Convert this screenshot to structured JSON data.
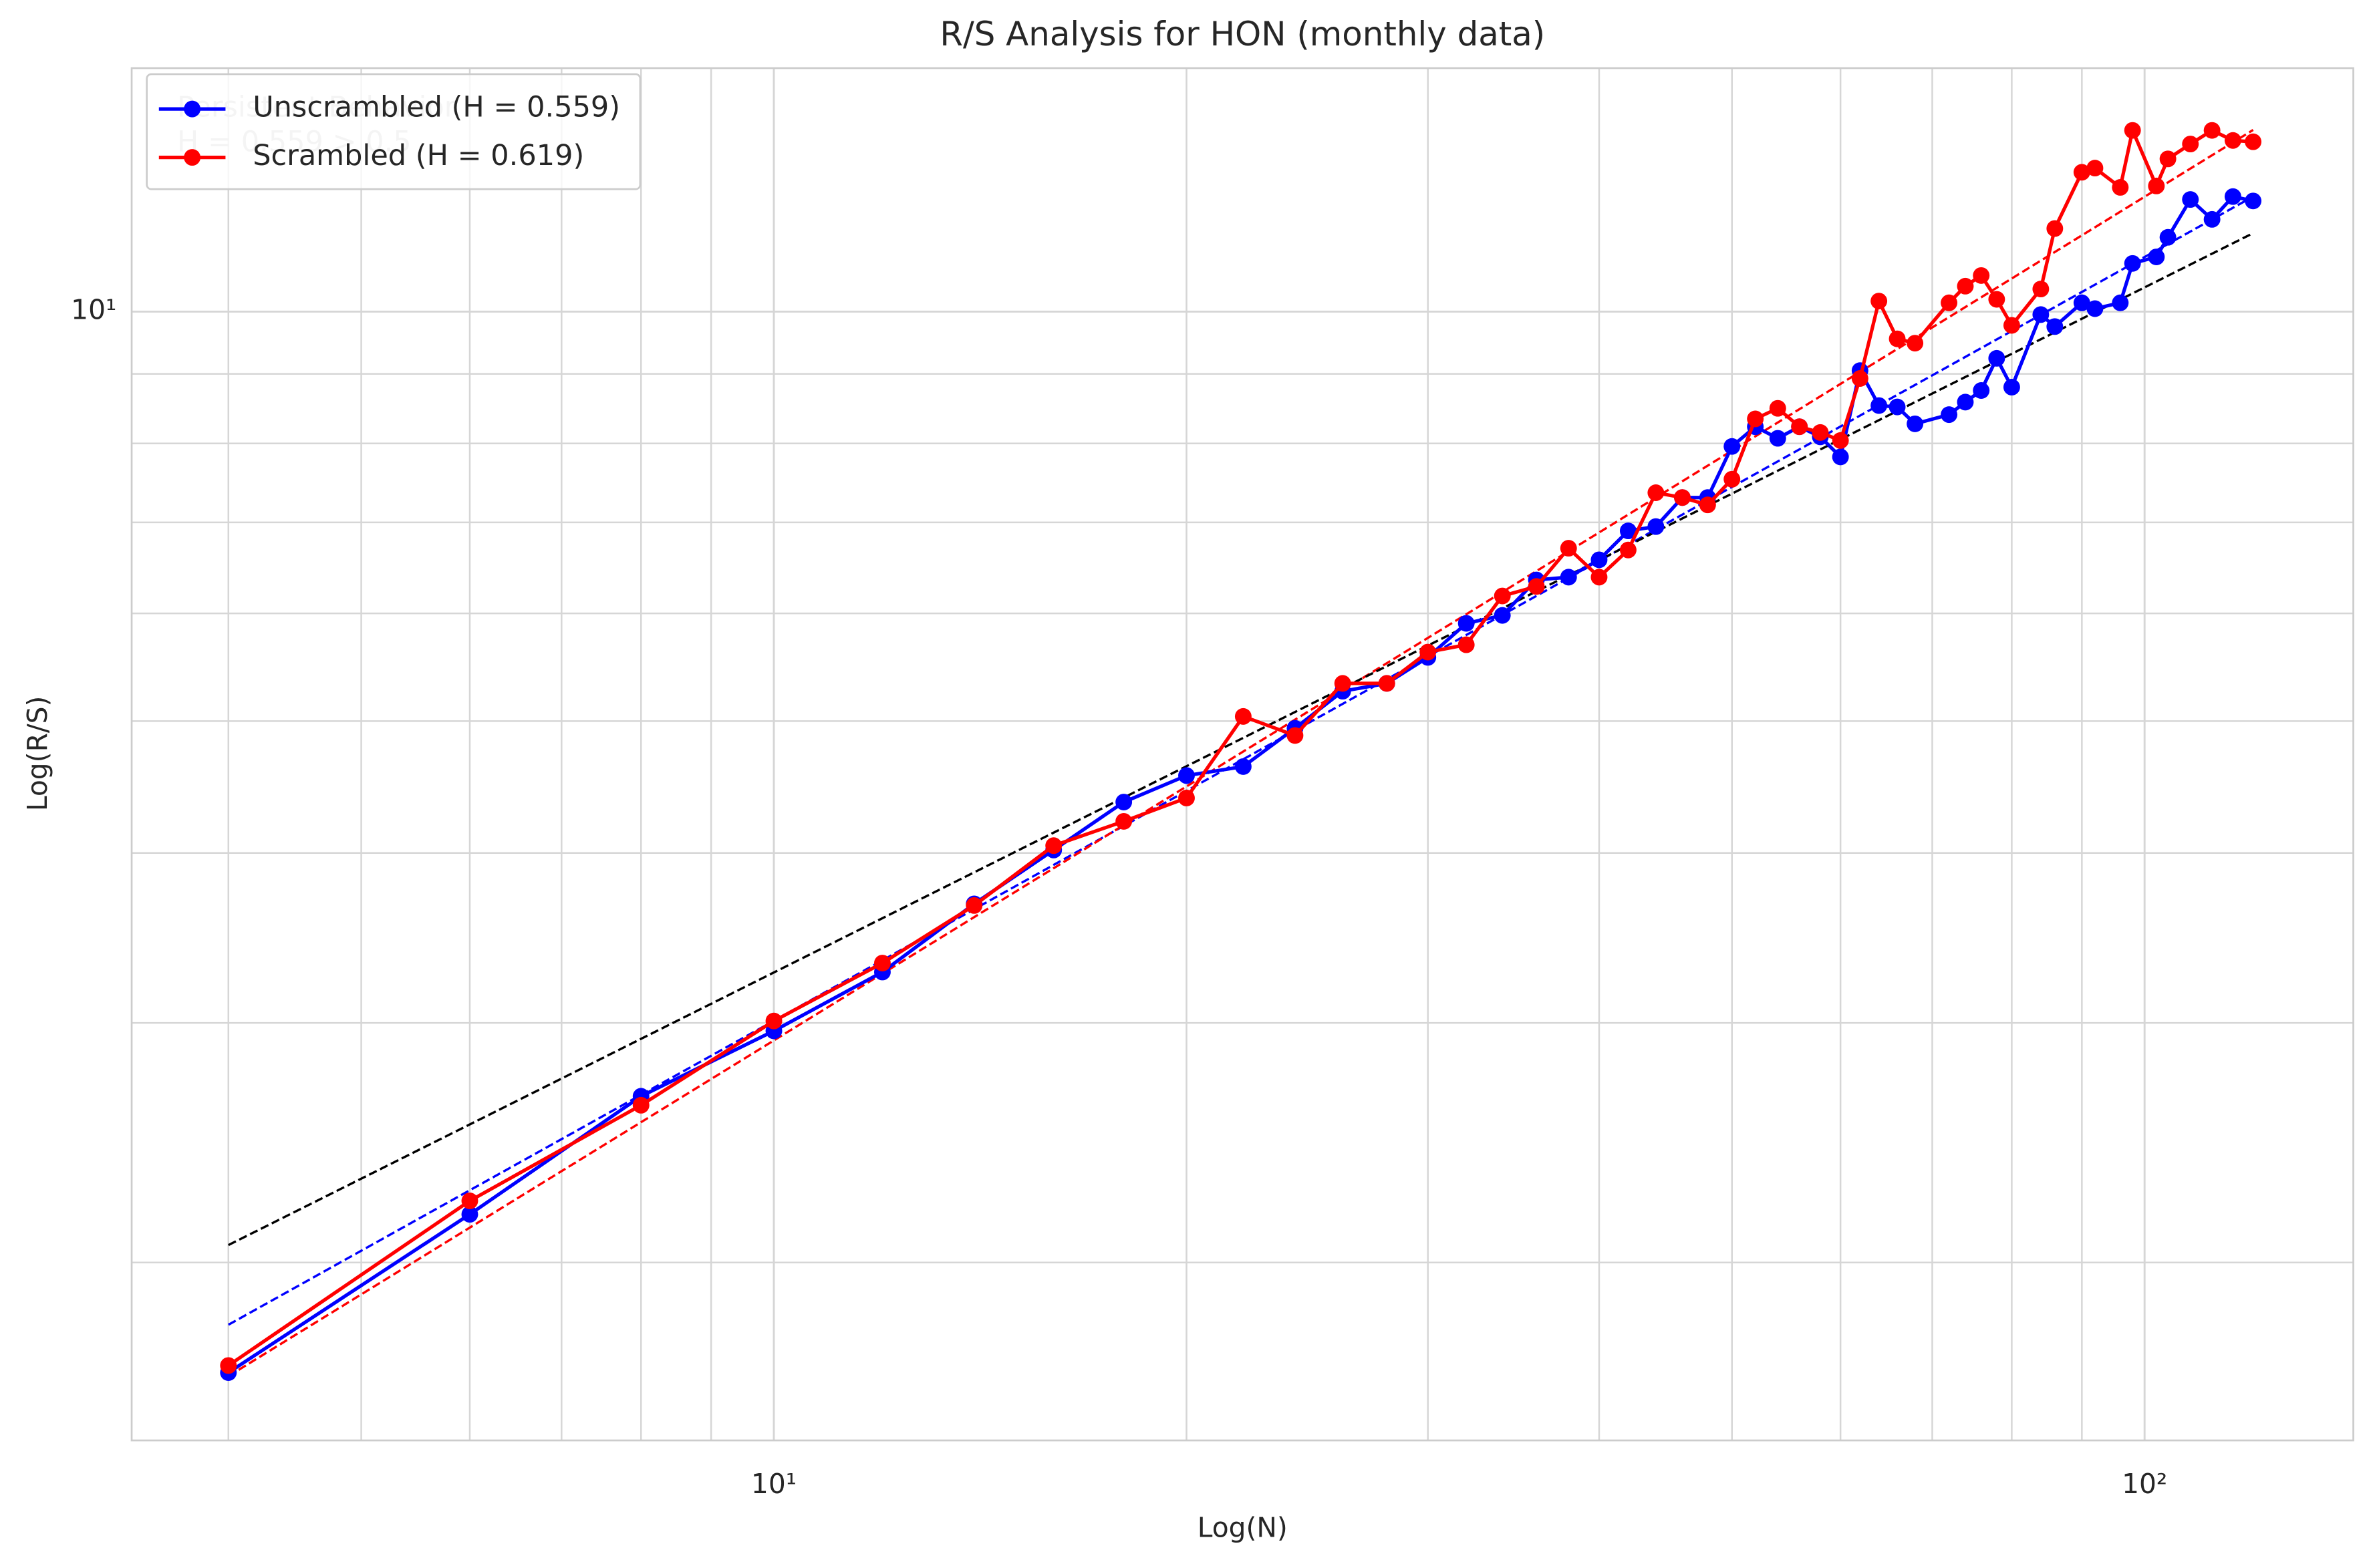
{
  "chart_data": {
    "type": "line",
    "title": "R/S Analysis for HON (monthly data)",
    "xlabel": "Log(N)",
    "ylabel": "Log(R/S)",
    "xscale": "log",
    "yscale": "log",
    "grid": true,
    "legend": "upper left",
    "xlim": [
      3.4,
      142
    ],
    "ylim": [
      1.48,
      15.1
    ],
    "xticks": [
      {
        "value": 10,
        "label": "10¹"
      },
      {
        "value": 100,
        "label": "10²"
      }
    ],
    "yticks": [
      {
        "value": 10,
        "label": "10¹"
      }
    ],
    "xminor": [
      4,
      5,
      6,
      7,
      8,
      9,
      20,
      30,
      40,
      50,
      60,
      70,
      80,
      90
    ],
    "yminor": [
      2,
      3,
      4,
      5,
      6,
      7,
      8,
      9
    ],
    "x": [
      4,
      6,
      8,
      10,
      12,
      14,
      16,
      18,
      20,
      22,
      24,
      26,
      28,
      30,
      32,
      34,
      36,
      38,
      40,
      42,
      44,
      46,
      48,
      50,
      52,
      54,
      56,
      58,
      60,
      62,
      64,
      66,
      68,
      72,
      74,
      76,
      78,
      80,
      84,
      86,
      90,
      92,
      96,
      98,
      102,
      104,
      108,
      112,
      116,
      120
    ],
    "series": [
      {
        "name": "Unscrambled (H = 0.559)",
        "color": "#0000ff",
        "values": [
          1.66,
          2.17,
          2.65,
          2.96,
          3.27,
          3.67,
          4.02,
          4.36,
          4.56,
          4.63,
          4.94,
          5.26,
          5.33,
          5.57,
          5.9,
          5.98,
          6.35,
          6.38,
          6.57,
          6.9,
          6.95,
          7.3,
          7.3,
          7.96,
          8.23,
          8.07,
          8.23,
          8.09,
          7.82,
          9.05,
          8.53,
          8.51,
          8.27,
          8.4,
          8.58,
          8.75,
          9.24,
          8.8,
          9.95,
          9.75,
          10.15,
          10.05,
          10.15,
          10.85,
          10.97,
          11.34,
          12.09,
          11.69,
          12.15,
          12.06
        ]
      },
      {
        "name": "Scrambled (H = 0.619)",
        "color": "#ff0000",
        "values": [
          1.68,
          2.22,
          2.61,
          3.01,
          3.32,
          3.66,
          4.05,
          4.22,
          4.39,
          5.04,
          4.88,
          5.33,
          5.33,
          5.62,
          5.69,
          6.18,
          6.28,
          6.7,
          6.38,
          6.68,
          7.36,
          7.3,
          7.21,
          7.53,
          8.34,
          8.49,
          8.23,
          8.15,
          8.04,
          8.93,
          10.18,
          9.55,
          9.48,
          10.15,
          10.44,
          10.63,
          10.21,
          9.77,
          10.39,
          11.51,
          12.66,
          12.75,
          12.34,
          13.59,
          12.37,
          12.95,
          13.28,
          13.59,
          13.36,
          13.33
        ]
      }
    ],
    "fit_lines": [
      {
        "color": "#0000ff",
        "x": [
          4,
          120
        ],
        "values": [
          1.8,
          12.15
        ]
      },
      {
        "color": "#ff0000",
        "x": [
          4,
          120
        ],
        "values": [
          1.65,
          13.6
        ]
      },
      {
        "color": "#000000",
        "x": [
          4,
          120
        ],
        "values": [
          2.06,
          11.42
        ]
      }
    ],
    "annotation": [
      "Persistent Behavior",
      "H = 0.559 > 0.5"
    ]
  }
}
